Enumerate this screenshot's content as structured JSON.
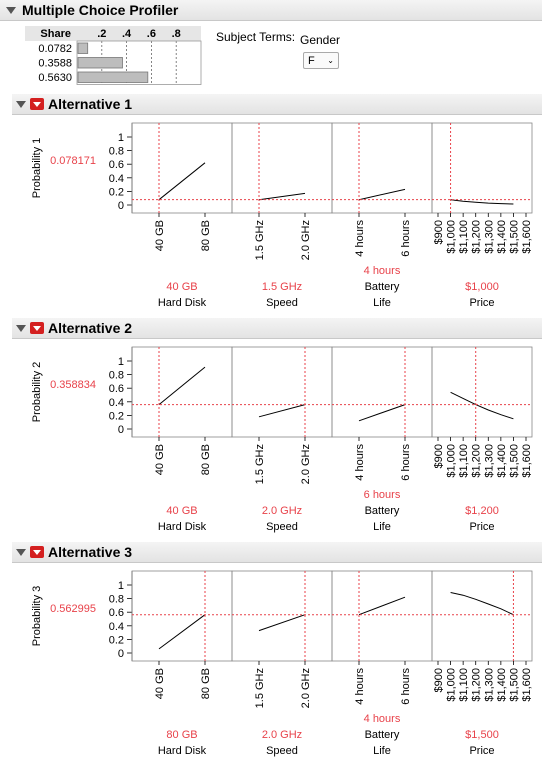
{
  "title": "Multiple Choice Profiler",
  "share_table": {
    "header": "Share",
    "ticks": [
      ".2",
      ".4",
      ".6",
      ".8"
    ],
    "rows": [
      {
        "label": "0.0782",
        "value": 0.0782
      },
      {
        "label": "0.3588",
        "value": 0.3588
      },
      {
        "label": "0.5630",
        "value": 0.563
      }
    ]
  },
  "subject_terms": {
    "label": "Subject Terms:",
    "variable": "Gender",
    "selected": "F"
  },
  "colors": {
    "accent": "#e8424a",
    "curve": "#000000",
    "bar": "#bdbdbd"
  },
  "chart_data": [
    {
      "type": "line",
      "title": "Alternative 1",
      "ylabel": "Probability 1",
      "current_value": "0.078171",
      "ylim": [
        0,
        1
      ],
      "yticks": [
        "0",
        "0.2",
        "0.4",
        "0.6",
        "0.8",
        "1"
      ],
      "panels": [
        {
          "name": "Hard Disk",
          "current_label": "40 GB",
          "tick_labels": [
            "40 GB",
            "80 GB"
          ],
          "x": [
            0,
            1
          ],
          "y": [
            0.078,
            0.62
          ],
          "current_x": 0
        },
        {
          "name": "Speed",
          "current_label": "1.5 GHz",
          "tick_labels": [
            "1.5 GHz",
            "2.0 GHz"
          ],
          "x": [
            0,
            1
          ],
          "y": [
            0.078,
            0.17
          ],
          "current_x": 0
        },
        {
          "name": "Battery Life",
          "name_lines": [
            "Battery",
            "Life"
          ],
          "current_label": "4 hours",
          "tick_labels": [
            "4 hours",
            "6 hours"
          ],
          "x": [
            0,
            1
          ],
          "y": [
            0.078,
            0.23
          ],
          "current_x": 0
        },
        {
          "name": "Price",
          "current_label": "$1,000",
          "tick_labels": [
            "$900",
            "$1,000",
            "$1,100",
            "$1,200",
            "$1,300",
            "$1,400",
            "$1,500",
            "$1,600"
          ],
          "x": [
            1000,
            1100,
            1200,
            1300,
            1400,
            1500
          ],
          "y": [
            0.078,
            0.055,
            0.04,
            0.028,
            0.02,
            0.015
          ],
          "current_x": 1000
        }
      ]
    },
    {
      "type": "line",
      "title": "Alternative 2",
      "ylabel": "Probability 2",
      "current_value": "0.358834",
      "ylim": [
        0,
        1
      ],
      "yticks": [
        "0",
        "0.2",
        "0.4",
        "0.6",
        "0.8",
        "1"
      ],
      "panels": [
        {
          "name": "Hard Disk",
          "current_label": "40 GB",
          "tick_labels": [
            "40 GB",
            "80 GB"
          ],
          "x": [
            0,
            1
          ],
          "y": [
            0.359,
            0.91
          ],
          "current_x": 0
        },
        {
          "name": "Speed",
          "current_label": "2.0 GHz",
          "tick_labels": [
            "1.5 GHz",
            "2.0 GHz"
          ],
          "x": [
            0,
            1
          ],
          "y": [
            0.18,
            0.359
          ],
          "current_x": 1
        },
        {
          "name": "Battery Life",
          "name_lines": [
            "Battery",
            "Life"
          ],
          "current_label": "6 hours",
          "tick_labels": [
            "4 hours",
            "6 hours"
          ],
          "x": [
            0,
            1
          ],
          "y": [
            0.12,
            0.359
          ],
          "current_x": 1
        },
        {
          "name": "Price",
          "current_label": "$1,200",
          "tick_labels": [
            "$900",
            "$1,000",
            "$1,100",
            "$1,200",
            "$1,300",
            "$1,400",
            "$1,500",
            "$1,600"
          ],
          "x": [
            1000,
            1100,
            1200,
            1300,
            1400,
            1500
          ],
          "y": [
            0.54,
            0.45,
            0.359,
            0.28,
            0.21,
            0.15
          ],
          "current_x": 1200
        }
      ]
    },
    {
      "type": "line",
      "title": "Alternative 3",
      "ylabel": "Probability 3",
      "current_value": "0.562995",
      "ylim": [
        0,
        1
      ],
      "yticks": [
        "0",
        "0.2",
        "0.4",
        "0.6",
        "0.8",
        "1"
      ],
      "panels": [
        {
          "name": "Hard Disk",
          "current_label": "80 GB",
          "tick_labels": [
            "40 GB",
            "80 GB"
          ],
          "x": [
            0,
            1
          ],
          "y": [
            0.06,
            0.563
          ],
          "current_x": 1
        },
        {
          "name": "Speed",
          "current_label": "2.0 GHz",
          "tick_labels": [
            "1.5 GHz",
            "2.0 GHz"
          ],
          "x": [
            0,
            1
          ],
          "y": [
            0.33,
            0.563
          ],
          "current_x": 1
        },
        {
          "name": "Battery Life",
          "name_lines": [
            "Battery",
            "Life"
          ],
          "current_label": "4 hours",
          "tick_labels": [
            "4 hours",
            "6 hours"
          ],
          "x": [
            0,
            1
          ],
          "y": [
            0.563,
            0.82
          ],
          "current_x": 0
        },
        {
          "name": "Price",
          "current_label": "$1,500",
          "tick_labels": [
            "$900",
            "$1,000",
            "$1,100",
            "$1,200",
            "$1,300",
            "$1,400",
            "$1,500",
            "$1,600"
          ],
          "x": [
            1000,
            1100,
            1200,
            1300,
            1400,
            1500
          ],
          "y": [
            0.89,
            0.85,
            0.79,
            0.72,
            0.65,
            0.563
          ],
          "current_x": 1500
        }
      ]
    }
  ]
}
